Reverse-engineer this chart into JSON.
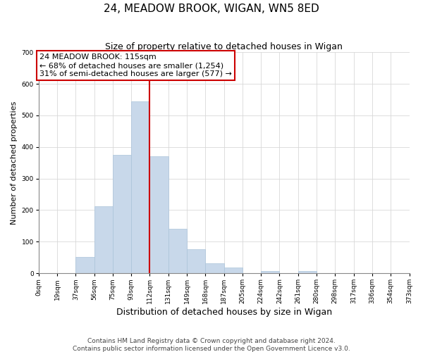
{
  "title": "24, MEADOW BROOK, WIGAN, WN5 8ED",
  "subtitle": "Size of property relative to detached houses in Wigan",
  "xlabel": "Distribution of detached houses by size in Wigan",
  "ylabel": "Number of detached properties",
  "footer_line1": "Contains HM Land Registry data © Crown copyright and database right 2024.",
  "footer_line2": "Contains public sector information licensed under the Open Government Licence v3.0.",
  "bar_color": "#c8d8ea",
  "bar_edge_color": "#aac4da",
  "annotation_box_color": "#ffffff",
  "annotation_box_edge": "#cc0000",
  "vline_color": "#cc0000",
  "tick_labels": [
    "0sqm",
    "19sqm",
    "37sqm",
    "56sqm",
    "75sqm",
    "93sqm",
    "112sqm",
    "131sqm",
    "149sqm",
    "168sqm",
    "187sqm",
    "205sqm",
    "224sqm",
    "242sqm",
    "261sqm",
    "280sqm",
    "298sqm",
    "317sqm",
    "336sqm",
    "354sqm",
    "373sqm"
  ],
  "n_bins": 20,
  "bar_heights": [
    0,
    0,
    52,
    213,
    375,
    545,
    370,
    140,
    75,
    32,
    18,
    0,
    8,
    0,
    8,
    0,
    0,
    0,
    0,
    0
  ],
  "ylim": [
    0,
    700
  ],
  "yticks": [
    0,
    100,
    200,
    300,
    400,
    500,
    600,
    700
  ],
  "vline_bin": 6,
  "annotation_text_line1": "24 MEADOW BROOK: 115sqm",
  "annotation_text_line2": "← 68% of detached houses are smaller (1,254)",
  "annotation_text_line3": "31% of semi-detached houses are larger (577) →",
  "annotation_fontsize": 8,
  "title_fontsize": 11,
  "subtitle_fontsize": 9,
  "xlabel_fontsize": 9,
  "ylabel_fontsize": 8,
  "footer_fontsize": 6.5,
  "tick_fontsize": 6.5
}
